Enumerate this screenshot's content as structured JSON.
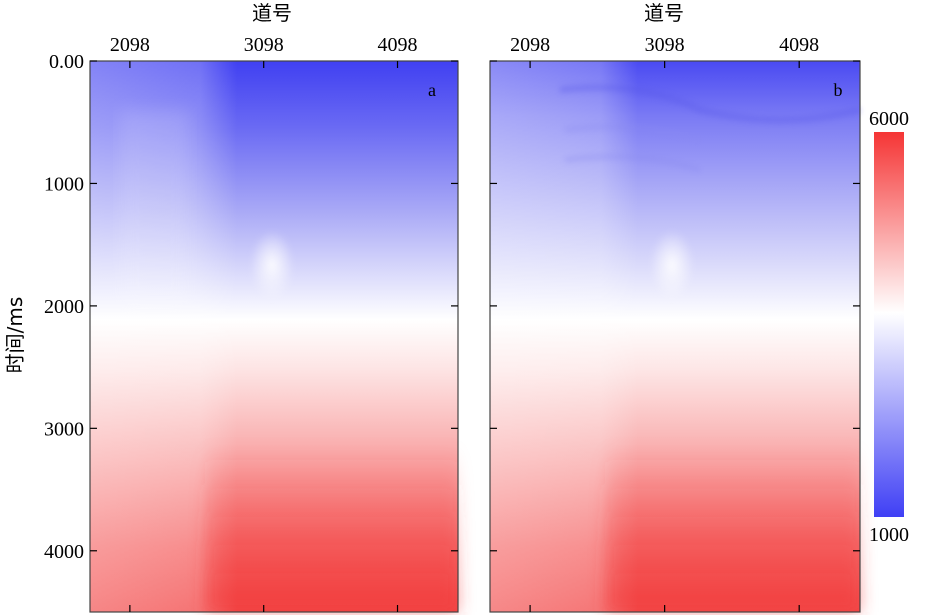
{
  "chart_data": [
    {
      "type": "heatmap",
      "panel_label": "a",
      "xlabel": "道号",
      "ylabel": "时间/ms",
      "x_ticks": [
        "2098",
        "3098",
        "4098"
      ],
      "x_tick_values": [
        2098,
        3098,
        4098
      ],
      "y_ticks": [
        "0.00",
        "1000",
        "2000",
        "3000",
        "4000"
      ],
      "y_tick_values": [
        0,
        1000,
        2000,
        3000,
        4000
      ],
      "xlim": [
        1800,
        4550
      ],
      "ylim": [
        4500,
        0
      ],
      "x_axis_position": "top",
      "colormap": [
        "#3f3ff5",
        "#ffffff",
        "#f53535"
      ],
      "value_range": [
        1000,
        6000
      ]
    },
    {
      "type": "heatmap",
      "panel_label": "b",
      "xlabel": "道号",
      "ylabel": "",
      "x_ticks": [
        "2098",
        "3098",
        "4098"
      ],
      "x_tick_values": [
        2098,
        3098,
        4098
      ],
      "xlim": [
        1800,
        4550
      ],
      "ylim": [
        4500,
        0
      ],
      "x_axis_position": "top",
      "colormap": [
        "#3f3ff5",
        "#ffffff",
        "#f53535"
      ],
      "value_range": [
        1000,
        6000
      ]
    }
  ],
  "colorbar": {
    "max_label": "6000",
    "min_label": "1000",
    "min": 1000,
    "max": 6000,
    "colors": [
      "#3f3ff5",
      "#ffffff",
      "#f53535"
    ]
  }
}
